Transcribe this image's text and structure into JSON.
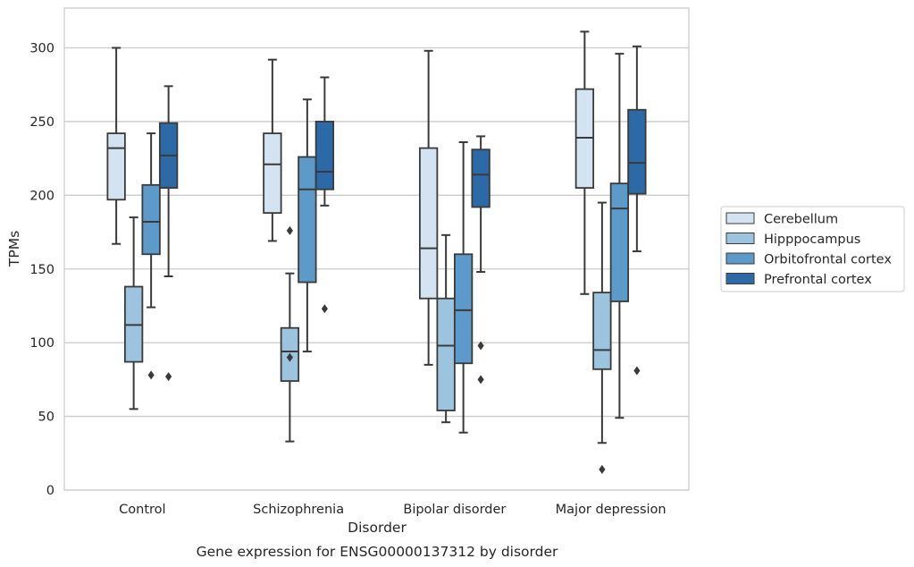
{
  "chart_data": {
    "type": "box",
    "xlabel": "Disorder",
    "ylabel": "TPMs",
    "caption": "Gene expression for ENSG00000137312 by disorder",
    "ylim": [
      0,
      327
    ],
    "yticks": [
      0,
      50,
      100,
      150,
      200,
      250,
      300
    ],
    "grid": "horizontal",
    "legend_position": "right",
    "categories": [
      "Control",
      "Schizophrenia",
      "Bipolar disorder",
      "Major depression"
    ],
    "series": [
      {
        "name": "Cerebellum",
        "color": "#d4e3f2",
        "boxes": [
          {
            "whislo": 167,
            "q1": 197,
            "med": 232,
            "q3": 242,
            "whishi": 300,
            "fliers": []
          },
          {
            "whislo": 169,
            "q1": 188,
            "med": 221,
            "q3": 242,
            "whishi": 292,
            "fliers": []
          },
          {
            "whislo": 85,
            "q1": 130,
            "med": 164,
            "q3": 232,
            "whishi": 298,
            "fliers": []
          },
          {
            "whislo": 133,
            "q1": 205,
            "med": 239,
            "q3": 272,
            "whishi": 311,
            "fliers": []
          }
        ]
      },
      {
        "name": "Hipppocampus",
        "color": "#9cc4df",
        "boxes": [
          {
            "whislo": 55,
            "q1": 87,
            "med": 112,
            "q3": 138,
            "whishi": 185,
            "fliers": []
          },
          {
            "whislo": 33,
            "q1": 74,
            "med": 94,
            "q3": 110,
            "whishi": 147,
            "fliers": [
              90,
              176
            ]
          },
          {
            "whislo": 46,
            "q1": 54,
            "med": 98,
            "q3": 130,
            "whishi": 173,
            "fliers": []
          },
          {
            "whislo": 32,
            "q1": 82,
            "med": 95,
            "q3": 134,
            "whishi": 195,
            "fliers": [
              14
            ]
          }
        ]
      },
      {
        "name": "Orbitofrontal cortex",
        "color": "#5b9ac9",
        "boxes": [
          {
            "whislo": 124,
            "q1": 160,
            "med": 182,
            "q3": 207,
            "whishi": 242,
            "fliers": [
              78
            ]
          },
          {
            "whislo": 94,
            "q1": 141,
            "med": 204,
            "q3": 226,
            "whishi": 265,
            "fliers": []
          },
          {
            "whislo": 39,
            "q1": 86,
            "med": 122,
            "q3": 160,
            "whishi": 236,
            "fliers": []
          },
          {
            "whislo": 49,
            "q1": 128,
            "med": 191,
            "q3": 208,
            "whishi": 296,
            "fliers": []
          }
        ]
      },
      {
        "name": "Prefrontal cortex",
        "color": "#2b6aa6",
        "boxes": [
          {
            "whislo": 145,
            "q1": 205,
            "med": 227,
            "q3": 249,
            "whishi": 274,
            "fliers": [
              77
            ]
          },
          {
            "whislo": 193,
            "q1": 204,
            "med": 216,
            "q3": 250,
            "whishi": 280,
            "fliers": [
              123
            ]
          },
          {
            "whislo": 148,
            "q1": 192,
            "med": 214,
            "q3": 231,
            "whishi": 240,
            "fliers": [
              75,
              98
            ]
          },
          {
            "whislo": 162,
            "q1": 201,
            "med": 222,
            "q3": 258,
            "whishi": 301,
            "fliers": [
              81
            ]
          }
        ]
      }
    ]
  }
}
